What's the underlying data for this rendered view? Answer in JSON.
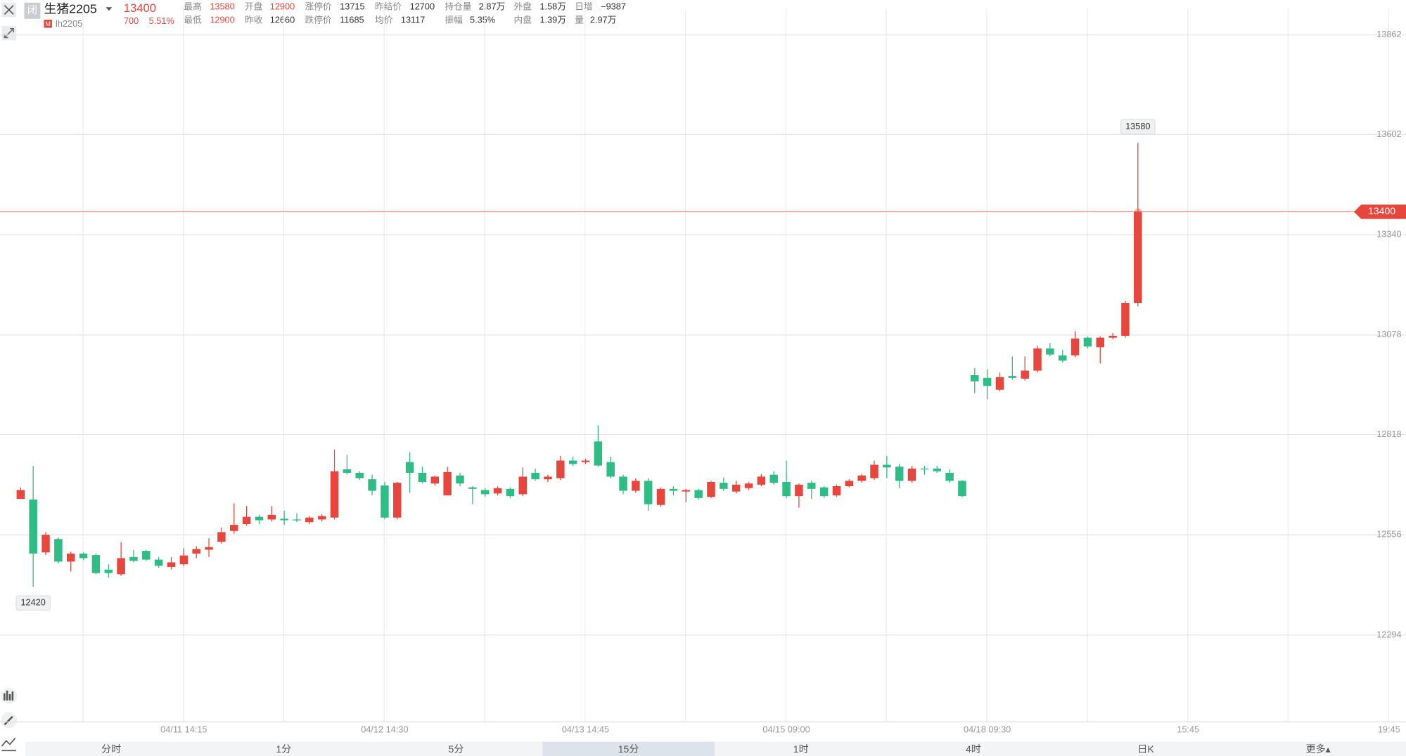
{
  "quote": {
    "status": "闭",
    "name": "生猪2205",
    "market": "M",
    "code": "lh2205",
    "price": "13400",
    "change": "700",
    "change_pct": "5.51%",
    "row1": [
      [
        "最高",
        "13580"
      ],
      [
        "开盘",
        "12900"
      ],
      [
        "涨停价",
        "13715"
      ],
      [
        "昨结价",
        "12700"
      ],
      [
        "持仓量",
        "2.87万"
      ],
      [
        "外盘",
        "1.58万"
      ],
      [
        "日增",
        "−9387"
      ]
    ],
    "row2": [
      [
        "最低",
        "12900"
      ],
      [
        "昨收",
        "12660"
      ],
      [
        "跌停价",
        "11685"
      ],
      [
        "均价",
        "13117"
      ],
      [
        "振幅",
        "5.35%"
      ],
      [
        "内盘",
        "1.39万"
      ],
      [
        "量",
        "2.97万"
      ]
    ]
  },
  "periods": [
    "分时",
    "1分",
    "5分",
    "15分",
    "1时",
    "4时",
    "日K",
    "更多▴"
  ],
  "chart_data": {
    "type": "candlestick",
    "up_color": "#e8453c",
    "down_color": "#2ebd85",
    "last_price_color": "#e8453c",
    "grid": true,
    "open": [
      12650,
      12648,
      12510,
      12545,
      12486,
      12507,
      12503,
      12465,
      12453,
      12498,
      12514,
      12491,
      12472,
      12479,
      12507,
      12517,
      12538,
      12566,
      12584,
      12603,
      12596,
      12598,
      12596,
      12589,
      12596,
      12601,
      12727,
      12718,
      12701,
      12685,
      12601,
      12746,
      12718,
      12690,
      12659,
      12711,
      12680,
      12673,
      12664,
      12676,
      12662,
      12718,
      12701,
      12704,
      12750,
      12746,
      12800,
      12746,
      12708,
      12671,
      12697,
      12634,
      12676,
      12669,
      12673,
      12655,
      12692,
      12669,
      12678,
      12687,
      12713,
      12694,
      12657,
      12692,
      12680,
      12659,
      12683,
      12697,
      12704,
      12739,
      12734,
      12697,
      12729,
      12729,
      12718,
      12697,
      12973,
      12966,
      12935,
      12971,
      12964,
      12985,
      13043,
      13025,
      13025,
      13071,
      13046,
      13071,
      13076,
      13162
    ],
    "high": [
      12680,
      12736,
      12563,
      12549,
      12512,
      12510,
      12507,
      12479,
      12537,
      12516,
      12517,
      12498,
      12498,
      12521,
      12526,
      12547,
      12575,
      12638,
      12631,
      12608,
      12631,
      12619,
      12612,
      12605,
      12610,
      12779,
      12765,
      12722,
      12713,
      12694,
      12694,
      12772,
      12734,
      12711,
      12734,
      12718,
      12683,
      12678,
      12683,
      12680,
      12732,
      12729,
      12713,
      12762,
      12760,
      12755,
      12842,
      12760,
      12713,
      12704,
      12704,
      12680,
      12683,
      12676,
      12676,
      12697,
      12706,
      12697,
      12694,
      12715,
      12722,
      12750,
      12690,
      12697,
      12683,
      12687,
      12701,
      12715,
      12750,
      12762,
      12741,
      12736,
      12736,
      12736,
      12727,
      12699,
      12992,
      12989,
      12980,
      13022,
      13022,
      13050,
      13057,
      13039,
      13088,
      13074,
      13074,
      13083,
      13167,
      13580
    ],
    "low": [
      12650,
      12420,
      12503,
      12481,
      12460,
      12490,
      12453,
      12444,
      12449,
      12484,
      12488,
      12470,
      12465,
      12474,
      12495,
      12498,
      12533,
      12559,
      12580,
      12584,
      12591,
      12582,
      12589,
      12584,
      12591,
      12596,
      12713,
      12699,
      12659,
      12596,
      12596,
      12666,
      12690,
      12685,
      12659,
      12683,
      12636,
      12655,
      12659,
      12652,
      12657,
      12697,
      12694,
      12699,
      12736,
      12741,
      12734,
      12704,
      12662,
      12666,
      12619,
      12629,
      12659,
      12641,
      12648,
      12652,
      12671,
      12664,
      12673,
      12683,
      12687,
      12652,
      12627,
      12650,
      12652,
      12655,
      12680,
      12692,
      12699,
      12704,
      12678,
      12692,
      12713,
      12718,
      12692,
      12655,
      12926,
      12910,
      12931,
      12961,
      12959,
      12980,
      13022,
      13006,
      13020,
      13043,
      13004,
      13067,
      13071,
      13153
    ],
    "close": [
      12673,
      12507,
      12556,
      12486,
      12507,
      12495,
      12456,
      12456,
      12495,
      12488,
      12491,
      12475,
      12484,
      12502,
      12519,
      12524,
      12563,
      12582,
      12603,
      12594,
      12608,
      12594,
      12594,
      12601,
      12605,
      12722,
      12718,
      12704,
      12671,
      12601,
      12692,
      12718,
      12694,
      12708,
      12720,
      12690,
      12676,
      12662,
      12678,
      12657,
      12708,
      12701,
      12708,
      12750,
      12741,
      12750,
      12737,
      12708,
      12671,
      12697,
      12636,
      12676,
      12671,
      12673,
      12652,
      12694,
      12676,
      12687,
      12690,
      12708,
      12692,
      12657,
      12687,
      12676,
      12657,
      12683,
      12697,
      12711,
      12739,
      12732,
      12697,
      12729,
      12727,
      12722,
      12697,
      12657,
      12957,
      12945,
      12968,
      12966,
      12985,
      13043,
      13027,
      13011,
      13069,
      13048,
      13071,
      13076,
      13162,
      13400
    ],
    "ylim": [
      12067,
      13930
    ],
    "yticks": [
      12294,
      12556,
      12818,
      13078,
      13340,
      13602,
      13862
    ],
    "xticks": [
      "04/11 14:15",
      "04/12 14:30",
      "04/13 14:45",
      "04/15 09:00",
      "04/18 09:30",
      "15:45",
      "19:45"
    ]
  }
}
